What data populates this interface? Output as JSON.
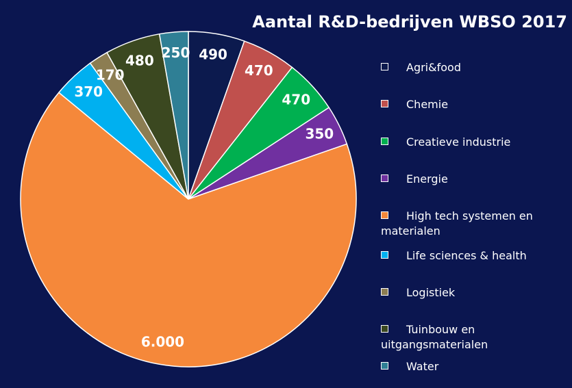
{
  "chart_data": {
    "type": "pie",
    "title": "Aantal R&D-bedrijven WBSO 2017",
    "categories": [
      "Agri&food",
      "Chemie",
      "Creatieve industrie",
      "Energie",
      "High tech systemen en materialen",
      "Life sciences & health",
      "Logistiek",
      "Tuinbouw en uitgangsmaterialen",
      "Water"
    ],
    "values": [
      490,
      470,
      470,
      350,
      6000,
      370,
      170,
      480,
      250
    ],
    "value_labels": [
      "490",
      "470",
      "470",
      "350",
      "6.000",
      "370",
      "170",
      "480",
      "250"
    ],
    "colors": [
      "#0c1a4e",
      "#c0504d",
      "#00b050",
      "#7030a0",
      "#f5883a",
      "#00b0f0",
      "#8c7d52",
      "#3b4820",
      "#2f7f95"
    ]
  }
}
